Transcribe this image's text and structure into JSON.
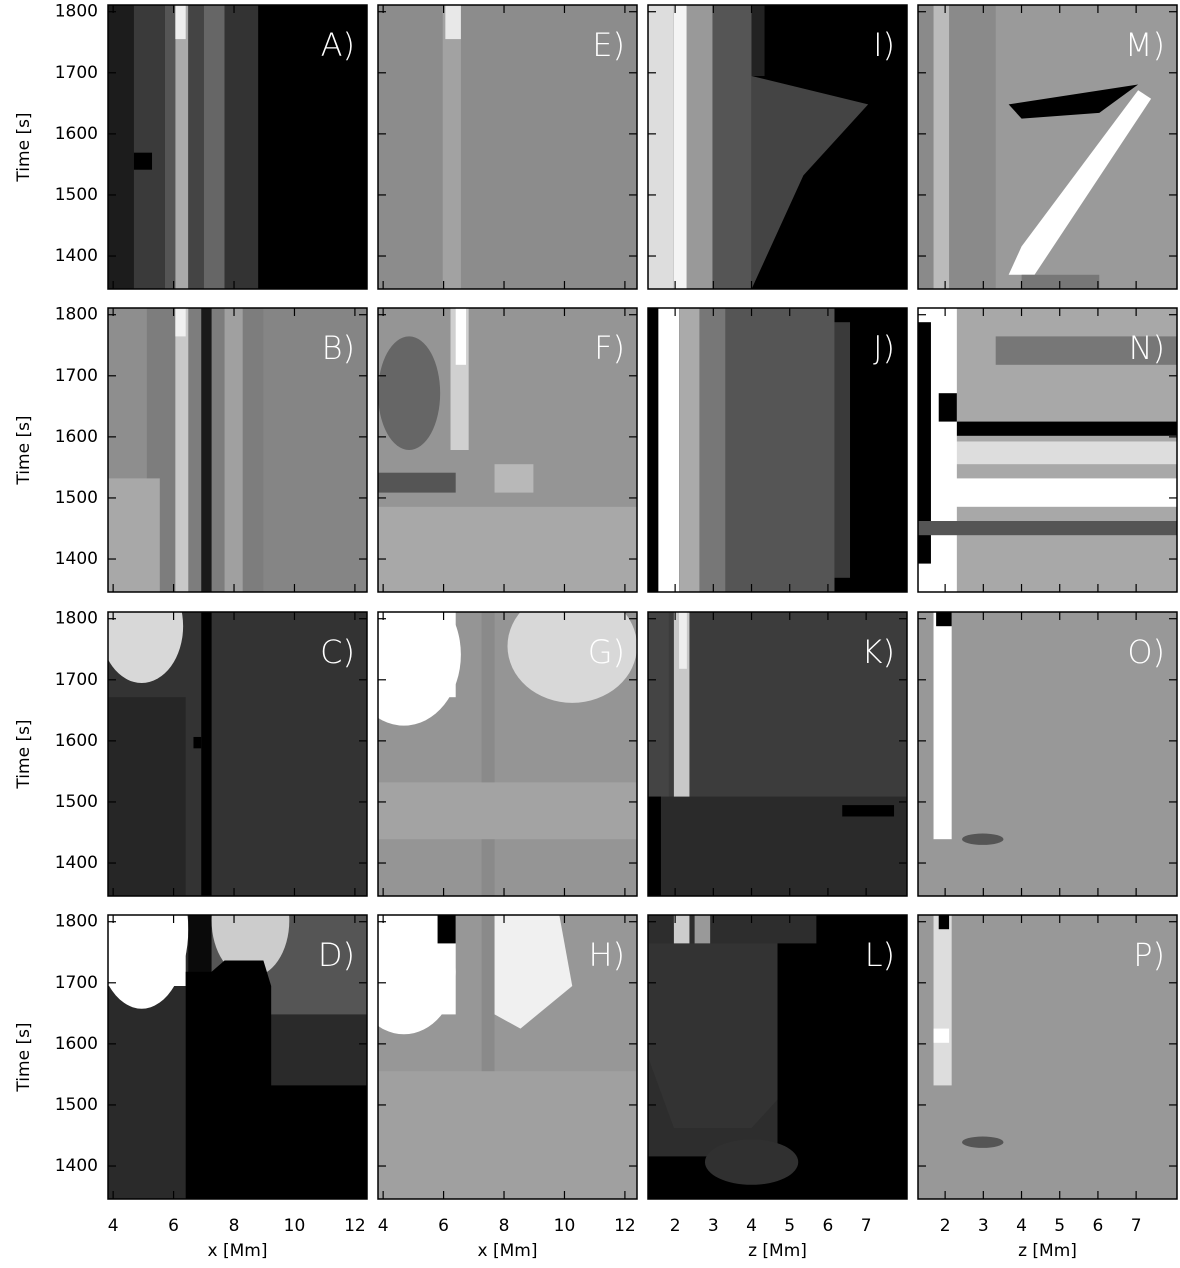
{
  "chart_data": {
    "type": "heatmap",
    "ylabel": "Time [s]",
    "ylim": [
      1346,
      1811
    ],
    "yticks": [
      1400,
      1500,
      1600,
      1700,
      1800
    ],
    "columns": [
      {
        "xlabel": "x [Mm]",
        "xlim": [
          3.83,
          12.4
        ],
        "xticks": [
          4,
          6,
          8,
          10,
          12
        ]
      },
      {
        "xlabel": "x [Mm]",
        "xlim": [
          3.83,
          12.4
        ],
        "xticks": [
          4,
          6,
          8,
          10,
          12
        ]
      },
      {
        "xlabel": "z [Mm]",
        "xlim": [
          1.29,
          8.07
        ],
        "xticks": [
          2,
          3,
          4,
          5,
          6,
          7
        ]
      },
      {
        "xlabel": "z [Mm]",
        "xlim": [
          1.29,
          8.07
        ],
        "xticks": [
          2,
          3,
          4,
          5,
          6,
          7
        ]
      }
    ],
    "panels": [
      "A)",
      "B)",
      "C)",
      "D)",
      "E)",
      "F)",
      "G)",
      "H)",
      "I)",
      "J)",
      "K)",
      "L)",
      "M)",
      "N)",
      "O)",
      "P)"
    ]
  }
}
